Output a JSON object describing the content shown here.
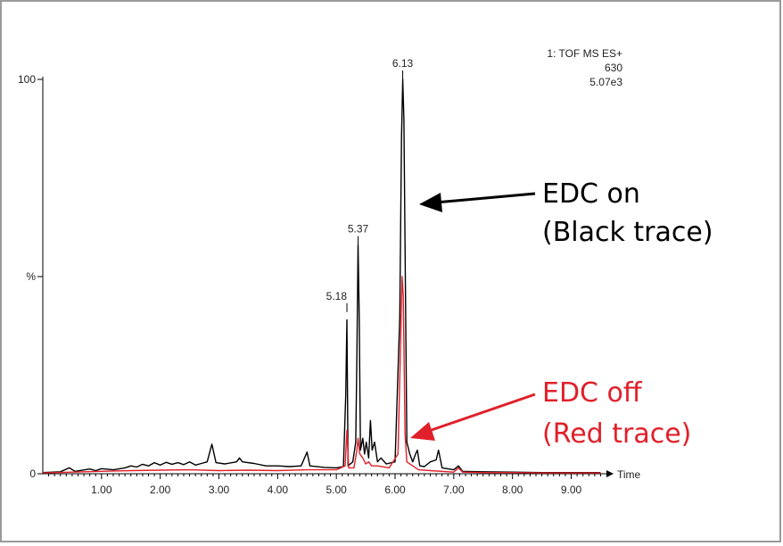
{
  "chart_data": {
    "type": "line",
    "header": {
      "line1": "1: TOF MS ES+",
      "line2": "630",
      "line3": "5.07e3"
    },
    "xlabel": "Time",
    "ylabel": "%",
    "xlim": [
      0,
      9.6
    ],
    "ylim": [
      0,
      100
    ],
    "x_ticks": [
      "1.00",
      "2.00",
      "3.00",
      "4.00",
      "5.00",
      "6.00",
      "7.00",
      "8.00",
      "9.00"
    ],
    "y_ticks": [
      "0",
      "%",
      "100"
    ],
    "peak_labels": [
      {
        "x": 5.18,
        "y": 41,
        "label": "5.18"
      },
      {
        "x": 5.37,
        "y": 58,
        "label": "5.37"
      },
      {
        "x": 6.13,
        "y": 100,
        "label": "6.13"
      }
    ],
    "series": [
      {
        "color": "#000000",
        "points": [
          [
            0.0,
            0.3
          ],
          [
            0.3,
            0.5
          ],
          [
            0.45,
            1.5
          ],
          [
            0.55,
            0.6
          ],
          [
            0.8,
            1.2
          ],
          [
            0.9,
            0.8
          ],
          [
            1.0,
            1.3
          ],
          [
            1.2,
            1.0
          ],
          [
            1.4,
            1.5
          ],
          [
            1.5,
            2.0
          ],
          [
            1.6,
            1.7
          ],
          [
            1.7,
            2.4
          ],
          [
            1.8,
            2.0
          ],
          [
            1.9,
            2.8
          ],
          [
            2.0,
            2.2
          ],
          [
            2.1,
            2.9
          ],
          [
            2.2,
            2.4
          ],
          [
            2.3,
            2.8
          ],
          [
            2.4,
            2.3
          ],
          [
            2.5,
            3.0
          ],
          [
            2.6,
            2.2
          ],
          [
            2.7,
            2.6
          ],
          [
            2.8,
            3.0
          ],
          [
            2.88,
            7.5
          ],
          [
            2.95,
            2.8
          ],
          [
            3.1,
            2.5
          ],
          [
            3.3,
            3.0
          ],
          [
            3.35,
            4.0
          ],
          [
            3.4,
            3.0
          ],
          [
            3.6,
            2.6
          ],
          [
            3.8,
            2.0
          ],
          [
            4.0,
            2.0
          ],
          [
            4.2,
            1.8
          ],
          [
            4.4,
            2.0
          ],
          [
            4.5,
            5.5
          ],
          [
            4.55,
            2.0
          ],
          [
            4.8,
            1.6
          ],
          [
            5.0,
            1.5
          ],
          [
            5.12,
            1.8
          ],
          [
            5.16,
            20
          ],
          [
            5.18,
            39
          ],
          [
            5.2,
            2.0
          ],
          [
            5.28,
            3.0
          ],
          [
            5.33,
            8.0
          ],
          [
            5.35,
            30
          ],
          [
            5.37,
            58
          ],
          [
            5.39,
            40
          ],
          [
            5.41,
            6.0
          ],
          [
            5.45,
            9.0
          ],
          [
            5.48,
            5.0
          ],
          [
            5.51,
            8.0
          ],
          [
            5.55,
            4.0
          ],
          [
            5.58,
            13.5
          ],
          [
            5.61,
            6.0
          ],
          [
            5.65,
            8.0
          ],
          [
            5.7,
            3.0
          ],
          [
            5.76,
            4.0
          ],
          [
            5.85,
            2.5
          ],
          [
            6.0,
            3.0
          ],
          [
            6.08,
            40
          ],
          [
            6.11,
            85
          ],
          [
            6.13,
            100
          ],
          [
            6.15,
            90
          ],
          [
            6.18,
            40
          ],
          [
            6.2,
            8.0
          ],
          [
            6.25,
            5.0
          ],
          [
            6.3,
            3.0
          ],
          [
            6.35,
            5.0
          ],
          [
            6.38,
            6.0
          ],
          [
            6.42,
            2.0
          ],
          [
            6.5,
            1.8
          ],
          [
            6.6,
            3.0
          ],
          [
            6.7,
            3.5
          ],
          [
            6.74,
            6.0
          ],
          [
            6.8,
            1.5
          ],
          [
            7.0,
            1.0
          ],
          [
            7.08,
            2.0
          ],
          [
            7.15,
            0.6
          ],
          [
            7.5,
            0.5
          ],
          [
            8.0,
            0.4
          ],
          [
            8.5,
            0.3
          ],
          [
            9.0,
            0.3
          ],
          [
            9.5,
            0.3
          ]
        ]
      },
      {
        "color": "#e0202a",
        "points": [
          [
            0.0,
            0.2
          ],
          [
            0.5,
            0.4
          ],
          [
            1.0,
            0.6
          ],
          [
            1.5,
            0.8
          ],
          [
            2.0,
            0.9
          ],
          [
            2.5,
            1.0
          ],
          [
            3.0,
            0.8
          ],
          [
            3.5,
            0.9
          ],
          [
            4.0,
            0.8
          ],
          [
            4.5,
            1.0
          ],
          [
            5.0,
            1.0
          ],
          [
            5.15,
            2.0
          ],
          [
            5.18,
            11
          ],
          [
            5.21,
            1.5
          ],
          [
            5.3,
            1.5
          ],
          [
            5.35,
            6.0
          ],
          [
            5.37,
            9.0
          ],
          [
            5.4,
            5.0
          ],
          [
            5.45,
            4.0
          ],
          [
            5.5,
            2.5
          ],
          [
            5.55,
            3.0
          ],
          [
            5.6,
            2.0
          ],
          [
            5.7,
            2.0
          ],
          [
            5.9,
            1.5
          ],
          [
            6.05,
            5.0
          ],
          [
            6.09,
            30
          ],
          [
            6.12,
            50
          ],
          [
            6.14,
            45
          ],
          [
            6.17,
            10
          ],
          [
            6.2,
            3.0
          ],
          [
            6.3,
            2.0
          ],
          [
            6.4,
            1.0
          ],
          [
            6.6,
            0.8
          ],
          [
            7.0,
            0.4
          ],
          [
            7.08,
            1.5
          ],
          [
            7.15,
            0.4
          ],
          [
            7.5,
            0.3
          ],
          [
            8.0,
            0.3
          ],
          [
            8.5,
            0.2
          ],
          [
            9.0,
            0.2
          ],
          [
            9.5,
            0.2
          ]
        ]
      }
    ],
    "annotations": [
      {
        "line1": "EDC on",
        "line2": "(Black trace)",
        "color": "#000000",
        "target": [
          6.2,
          68
        ]
      },
      {
        "line1": "EDC off",
        "line2": "(Red trace)",
        "color": "#e0202a",
        "target": [
          6.2,
          9
        ]
      }
    ]
  }
}
